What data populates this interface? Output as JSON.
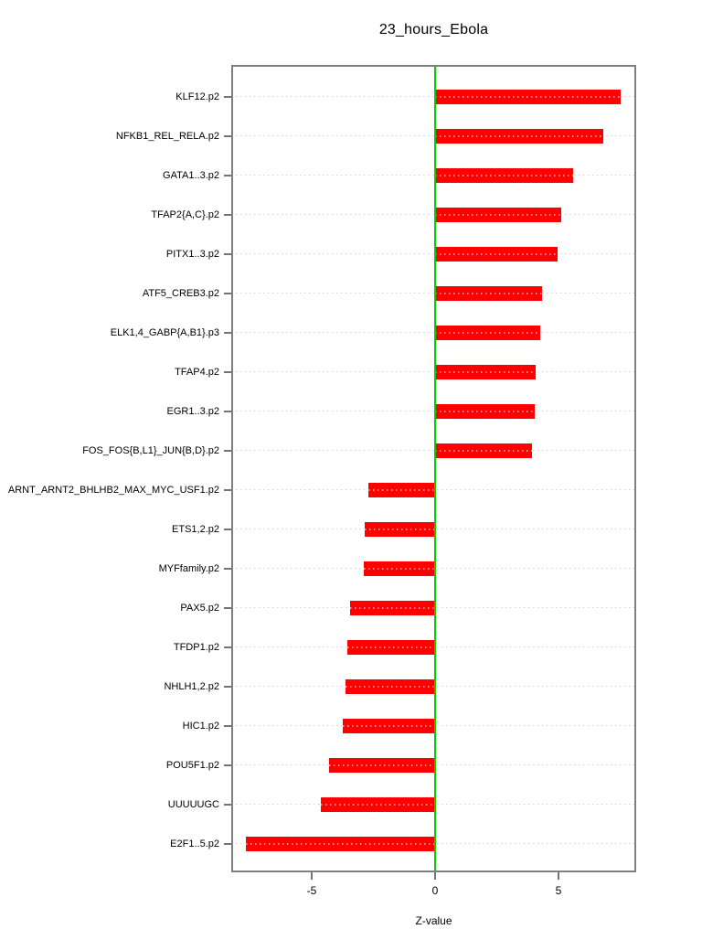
{
  "title": "23_hours_Ebola",
  "chart_data": {
    "type": "bar",
    "orientation": "horizontal",
    "title": "23_hours_Ebola",
    "xlabel": "Z-value",
    "categories": [
      "KLF12.p2",
      "NFKB1_REL_RELA.p2",
      "GATA1..3.p2",
      "TFAP2{A,C}.p2",
      "PITX1..3.p2",
      "ATF5_CREB3.p2",
      "ELK1,4_GABP{A,B1}.p3",
      "TFAP4.p2",
      "EGR1..3.p2",
      "FOS_FOS{B,L1}_JUN{B,D}.p2",
      "ARNT_ARNT2_BHLHB2_MAX_MYC_USF1.p2",
      "ETS1,2.p2",
      "MYFfamily.p2",
      "PAX5.p2",
      "TFDP1.p2",
      "NHLH1,2.p2",
      "HIC1.p2",
      "POU5F1.p2",
      "UUUUUGC",
      "E2F1..5.p2"
    ],
    "values": [
      7.53,
      6.81,
      5.6,
      5.11,
      4.97,
      4.32,
      4.25,
      4.06,
      4.04,
      3.91,
      -2.69,
      -2.84,
      -2.88,
      -3.43,
      -3.54,
      -3.63,
      -3.74,
      -4.3,
      -4.63,
      -7.67
    ],
    "xlim": [
      -8.26,
      8.15
    ],
    "xticks": [
      -5,
      0,
      5
    ],
    "xtick_labels": [
      "-5",
      "0",
      "5"
    ],
    "grid": true,
    "legend": null,
    "colors": {
      "bar": "#ff0000",
      "zero_line": "#00d000",
      "gridline": "#d3d3d3",
      "frame": "#7f7f7f"
    }
  }
}
